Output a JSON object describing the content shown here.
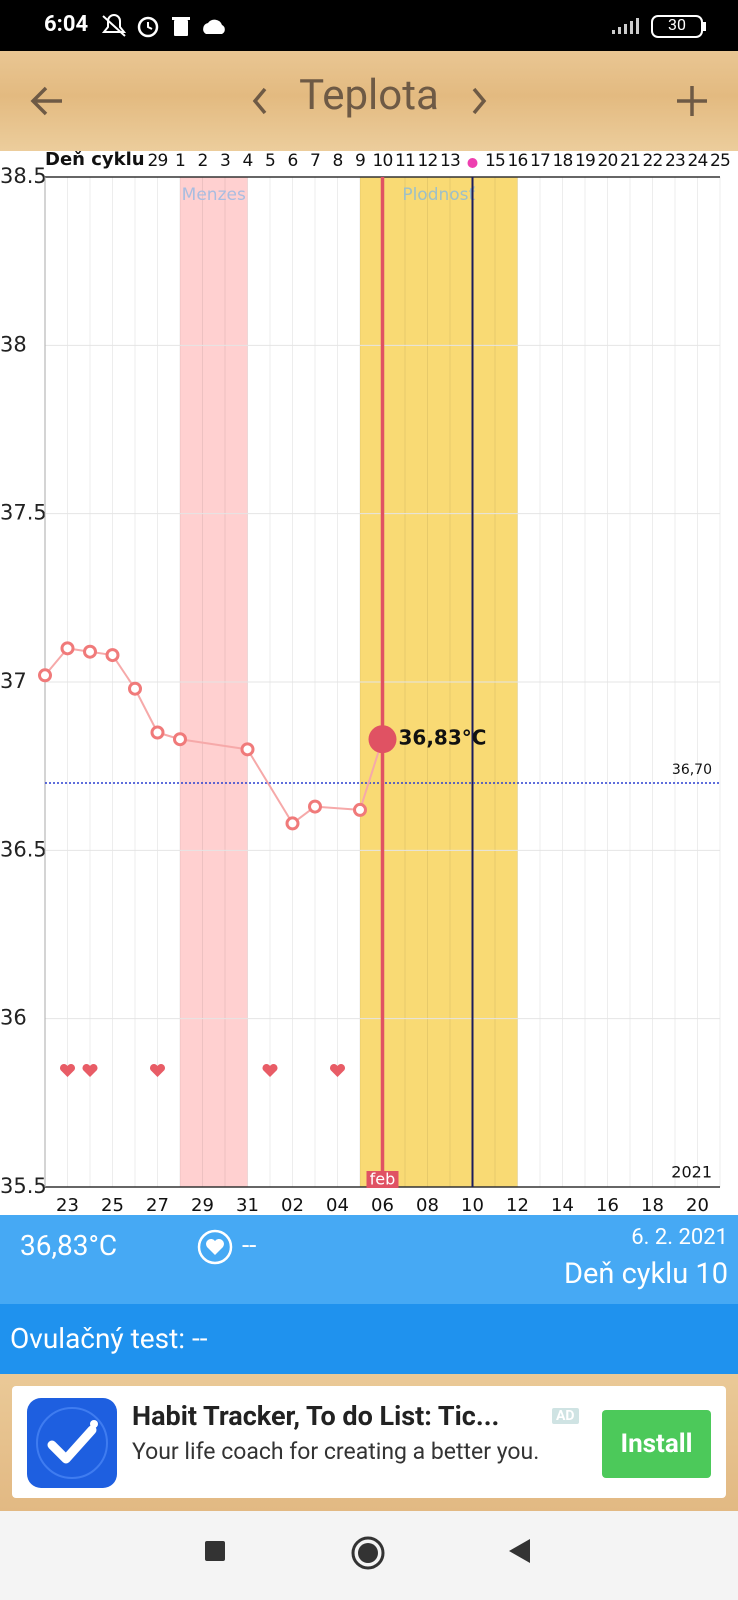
{
  "status_bar": {
    "time": "6:04",
    "battery": "30"
  },
  "header": {
    "title": "Teplota"
  },
  "chart_data": {
    "type": "line",
    "cycle_axis_label": "Deň cyklu",
    "categories": [
      null,
      "23",
      null,
      "25",
      null,
      "27",
      null,
      "29",
      null,
      "31",
      null,
      "02",
      null,
      "04",
      null,
      "06",
      null,
      "08",
      null,
      "10",
      null,
      "12",
      null,
      "14",
      null,
      "16",
      null,
      "18",
      null,
      "20",
      null
    ],
    "cycle_days": [
      null,
      null,
      null,
      null,
      null,
      "29",
      "1",
      "2",
      "3",
      "4",
      "5",
      "6",
      "7",
      "8",
      "9",
      "10",
      "11",
      "12",
      "13",
      null,
      "15",
      "16",
      "17",
      "18",
      "19",
      "20",
      "21",
      "22",
      "23",
      "24",
      "25"
    ],
    "series": [
      {
        "name": "Teplota",
        "color": "#f07a7a",
        "values": [
          37.02,
          37.1,
          37.09,
          37.08,
          36.98,
          36.85,
          36.83,
          null,
          null,
          36.8,
          null,
          36.58,
          36.63,
          null,
          36.62,
          36.83,
          null,
          null,
          null,
          null,
          null,
          null,
          null,
          null,
          null,
          null,
          null,
          null,
          null,
          null,
          null
        ]
      }
    ],
    "hearts": [
      false,
      true,
      true,
      false,
      false,
      true,
      false,
      false,
      false,
      false,
      true,
      false,
      false,
      true,
      false,
      false,
      false,
      false,
      false,
      false,
      false,
      false,
      false,
      false,
      false,
      false,
      false,
      false,
      false,
      false,
      false
    ],
    "heart_color": "#e85c66",
    "bands": [
      {
        "name": "Menzes",
        "from": "1",
        "to": "4",
        "color": "#ffd0d0",
        "label_color": "#a9bde0"
      },
      {
        "name": "Plodnosť",
        "from": "9",
        "to": "16",
        "color": "#f9da74",
        "label_color": "#9ec0c8"
      }
    ],
    "selected": {
      "cycle_day": "10",
      "value": 36.83,
      "value_label": "36,83°C",
      "color": "#e05263"
    },
    "ovulation_color": "#1c1c5c",
    "reference": {
      "value": 36.7,
      "label": "36,70",
      "color": "#2a3fd0"
    },
    "month_label": "feb",
    "year_label": "2021",
    "ylim": [
      35.5,
      38.5
    ],
    "yticks": [
      35.5,
      36,
      36.5,
      37,
      37.5,
      38,
      38.5
    ],
    "grid": true
  },
  "info": {
    "temperature": "36,83°C",
    "intercourse": "--",
    "date": "6. 2. 2021",
    "cycle_day": "Deň cyklu 10"
  },
  "ovulation_test": "Ovulačný test: --",
  "ad": {
    "title": "Habit Tracker, To do List: Tic...",
    "badge": "AD",
    "description": "Your life coach for creating a better you.",
    "button": "Install"
  }
}
